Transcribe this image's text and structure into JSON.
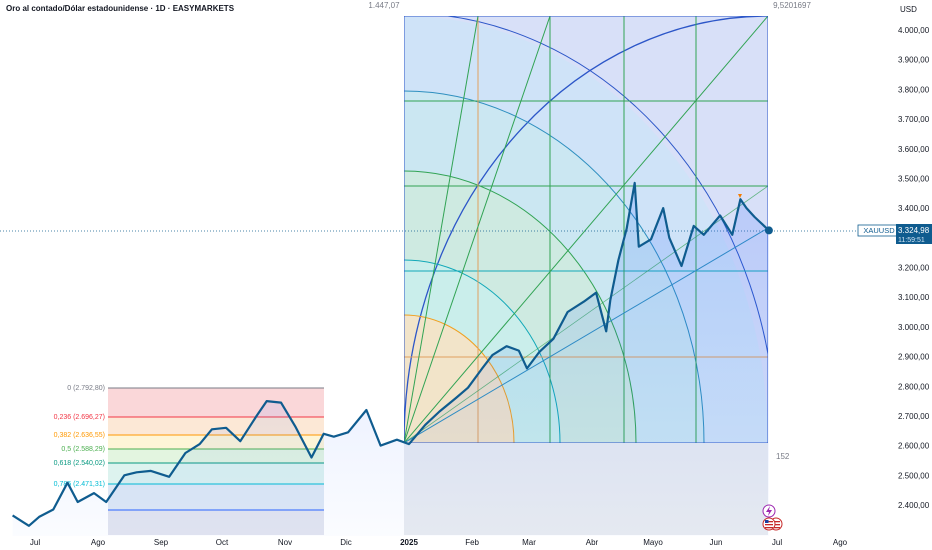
{
  "header": {
    "title": "Oro al contado/Dólar estadounidense · 1D · EASYMARKETS"
  },
  "overlay_labels": {
    "top_left": "1.447,07",
    "top_right": "9,5201697",
    "bottom_right": "152"
  },
  "price_tag": {
    "symbol": "XAUUSD",
    "price": "3.324,98",
    "countdown": "11:59:51"
  },
  "colors": {
    "line": "#0f5c8f",
    "tag": "#0f5c8f"
  },
  "chart_data": {
    "type": "line",
    "ylabel": "USD",
    "ylim": [
      2325,
      4080
    ],
    "y_ticks": [
      2400,
      2500,
      2600,
      2700,
      2800,
      2900,
      3000,
      3100,
      3200,
      3300,
      3400,
      3500,
      3600,
      3700,
      3800,
      3900,
      4000
    ],
    "y_tick_labels": [
      "2.400,00",
      "2.500,00",
      "2.600,00",
      "2.700,00",
      "2.800,00",
      "2.900,00",
      "3.000,00",
      "3.100,00",
      "3.200,00",
      "3.300,00",
      "3.400,00",
      "3.500,00",
      "3.600,00",
      "3.700,00",
      "3.800,00",
      "3.900,00",
      "4.000,00"
    ],
    "x_ticks": [
      "2024-07-01",
      "2024-08-01",
      "2024-09-01",
      "2024-10-01",
      "2024-11-01",
      "2024-12-01",
      "2025-01-01",
      "2025-02-01",
      "2025-03-01",
      "2025-04-01",
      "2025-05-01",
      "2025-06-01",
      "2025-07-01",
      "2025-08-01"
    ],
    "x_tick_labels": [
      "Jul",
      "Ago",
      "Sep",
      "Oct",
      "Nov",
      "Dic",
      "2025",
      "Feb",
      "Mar",
      "Abr",
      "Mayo",
      "Jun",
      "Jul",
      "Ago"
    ],
    "series": [
      {
        "x": [
          "2024-06-20",
          "2024-06-28",
          "2024-07-03",
          "2024-07-10",
          "2024-07-17",
          "2024-07-22",
          "2024-07-30",
          "2024-08-05",
          "2024-08-14",
          "2024-08-20",
          "2024-08-27",
          "2024-09-05",
          "2024-09-13",
          "2024-09-20",
          "2024-09-26",
          "2024-10-03",
          "2024-10-10",
          "2024-10-18",
          "2024-10-23",
          "2024-10-30",
          "2024-11-06",
          "2024-11-14",
          "2024-11-20",
          "2024-11-25",
          "2024-12-02",
          "2024-12-11",
          "2024-12-18",
          "2024-12-26",
          "2025-01-01",
          "2025-01-09",
          "2025-01-16",
          "2025-01-24",
          "2025-01-30",
          "2025-02-06",
          "2025-02-11",
          "2025-02-18",
          "2025-02-24",
          "2025-02-28",
          "2025-03-06",
          "2025-03-13",
          "2025-03-20",
          "2025-03-28",
          "2025-04-03",
          "2025-04-08",
          "2025-04-10",
          "2025-04-14",
          "2025-04-18",
          "2025-04-22",
          "2025-04-24",
          "2025-04-30",
          "2025-05-06",
          "2025-05-09",
          "2025-05-15",
          "2025-05-21",
          "2025-05-26",
          "2025-06-03",
          "2025-06-09",
          "2025-06-13",
          "2025-06-16",
          "2025-06-20",
          "2025-06-27"
        ],
        "y": [
          2365,
          2330,
          2360,
          2385,
          2475,
          2410,
          2440,
          2410,
          2500,
          2510,
          2515,
          2495,
          2575,
          2605,
          2655,
          2660,
          2615,
          2700,
          2750,
          2745,
          2665,
          2560,
          2640,
          2630,
          2645,
          2720,
          2600,
          2620,
          2605,
          2670,
          2715,
          2760,
          2795,
          2860,
          2905,
          2935,
          2920,
          2860,
          2915,
          2960,
          3050,
          3085,
          3115,
          2985,
          3090,
          3225,
          3330,
          3485,
          3270,
          3295,
          3400,
          3300,
          3205,
          3340,
          3310,
          3375,
          3310,
          3430,
          3400,
          3370,
          3325
        ]
      }
    ]
  }
}
